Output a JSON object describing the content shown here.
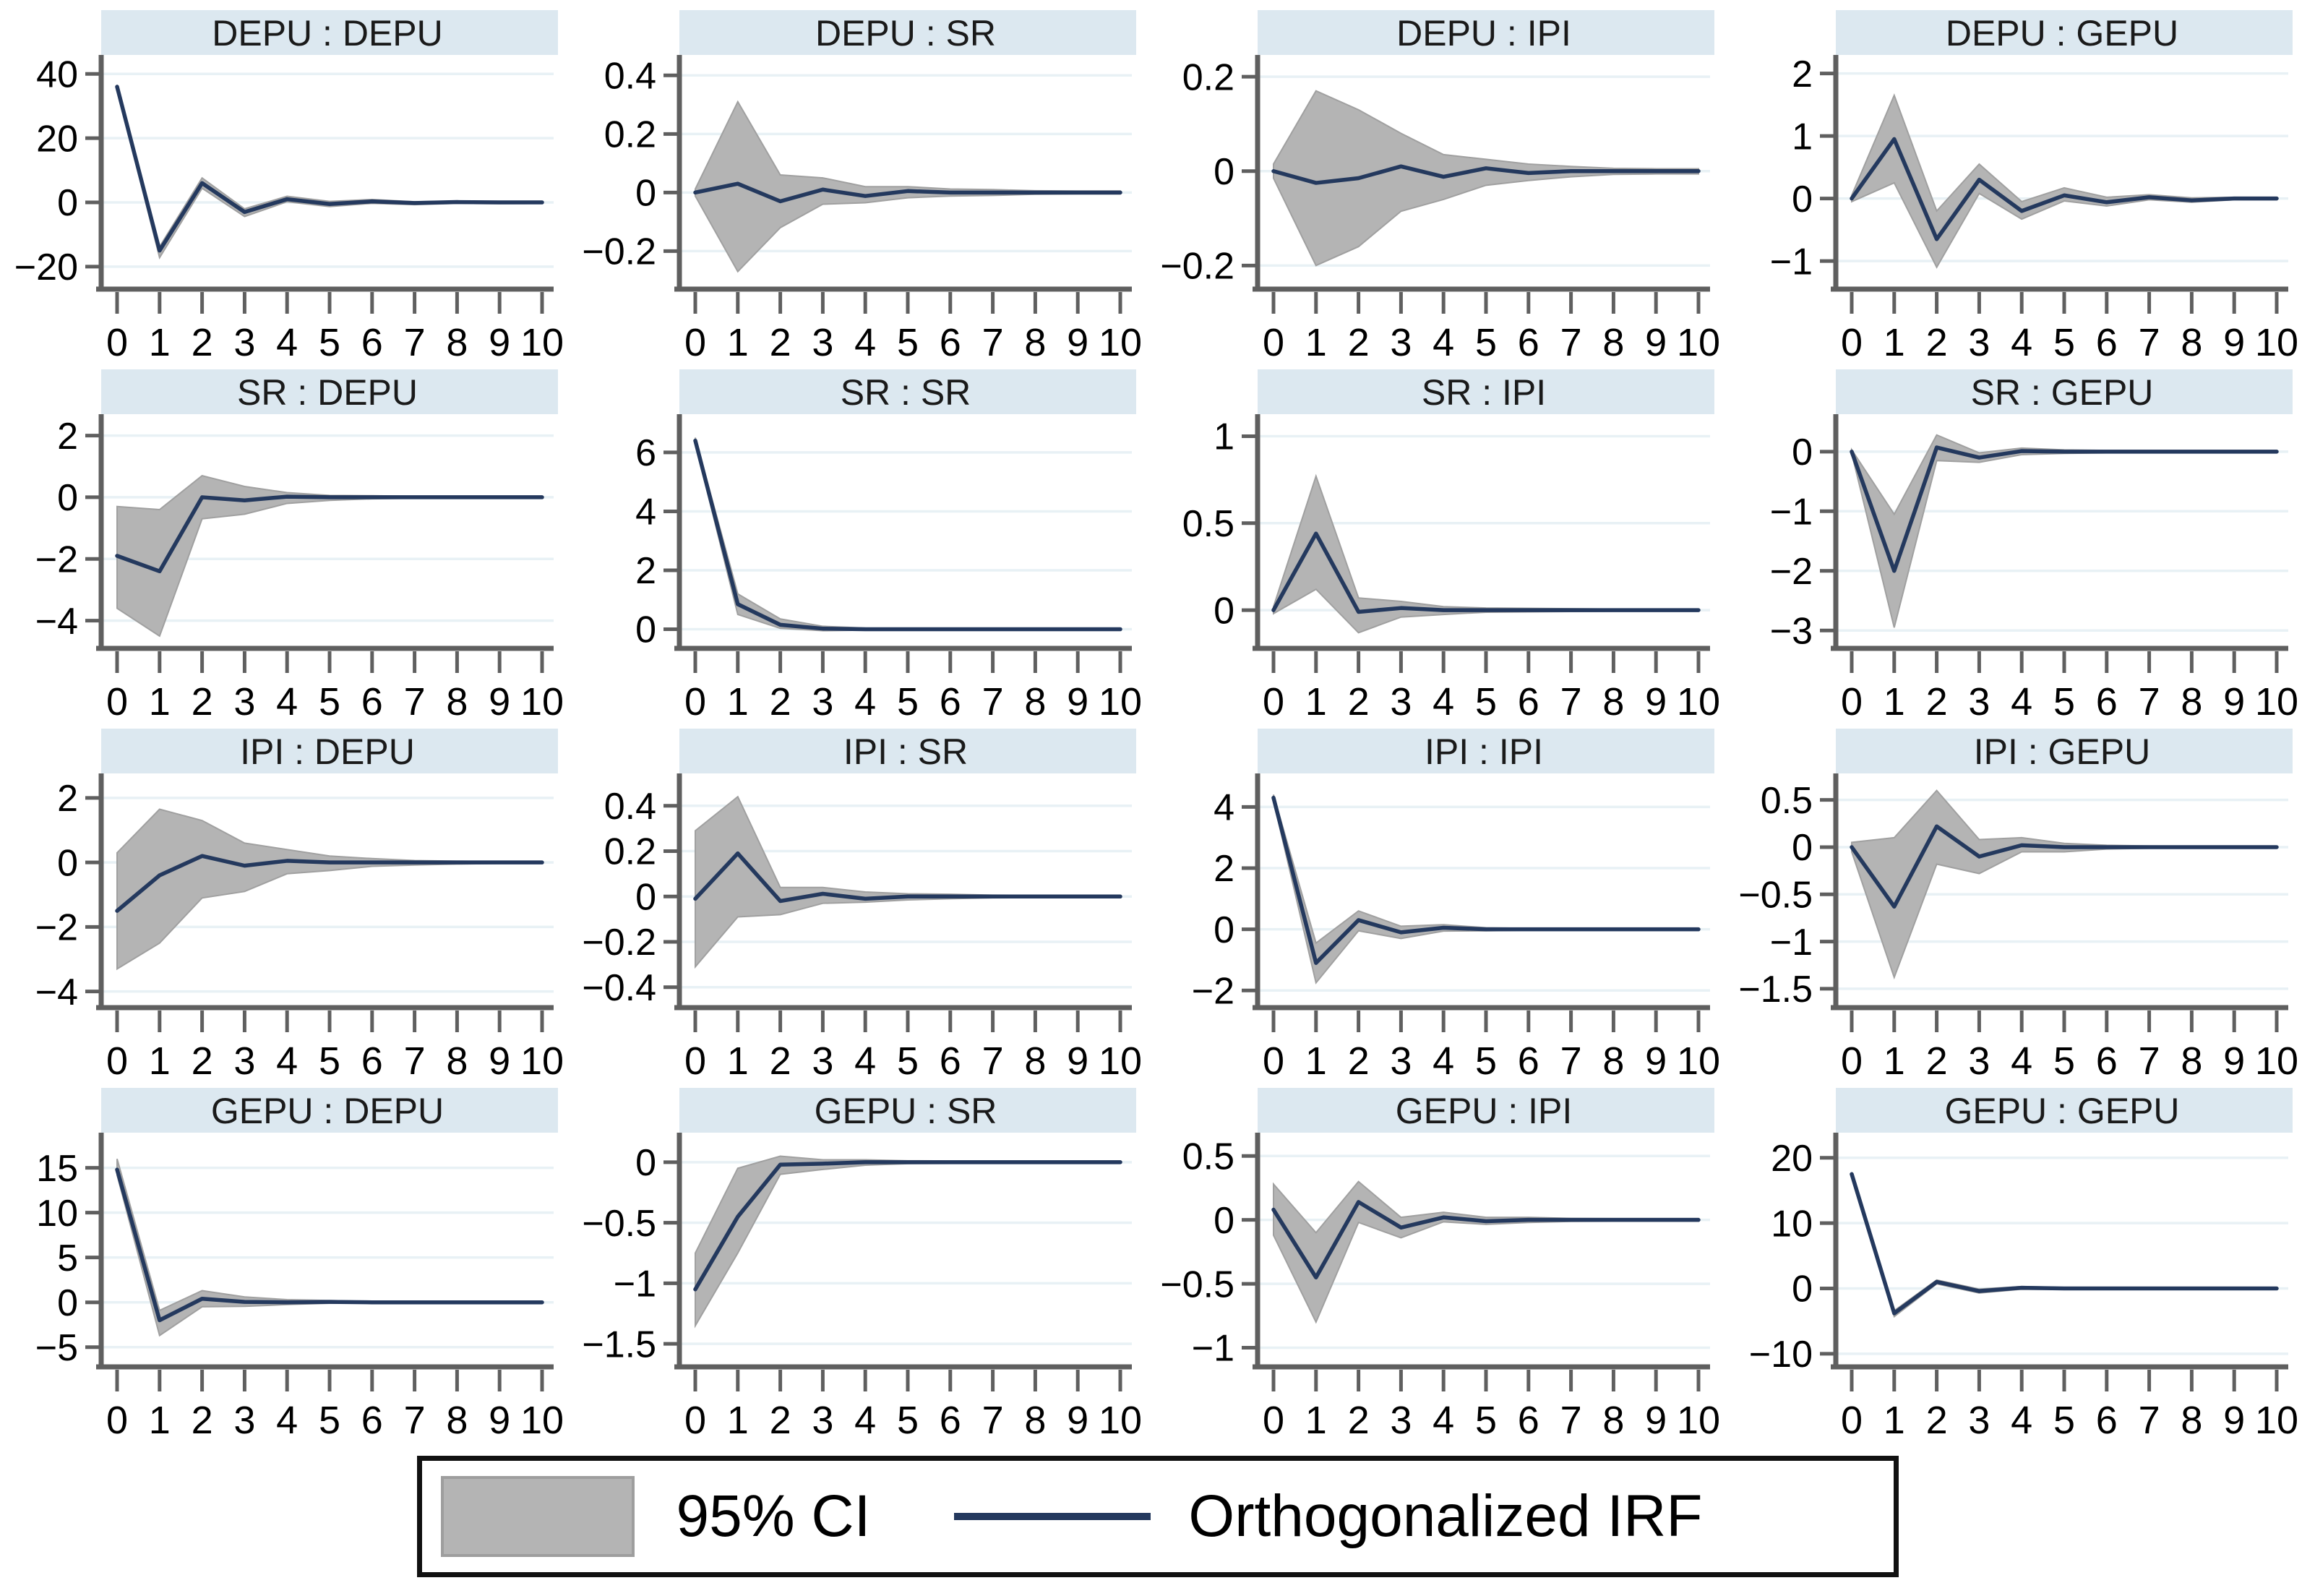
{
  "legend": {
    "ci_label": "95% CI",
    "irf_label": "Orthogonalized IRF"
  },
  "colors": {
    "irf_line": "#24395e",
    "ci_fill": "#b4b4b4",
    "ci_edge": "#a0a0a0",
    "title_band": "#dce8f0",
    "title_text": "#1a1a1a",
    "gridline": "#e8f1f5",
    "axis": "#5f5f5f",
    "tick_label": "#000000"
  },
  "chart_data": {
    "type": "line",
    "x_label": "",
    "x": [
      0,
      1,
      2,
      3,
      4,
      5,
      6,
      7,
      8,
      9,
      10
    ],
    "xticks": [
      0,
      1,
      2,
      3,
      4,
      5,
      6,
      7,
      8,
      9,
      10
    ],
    "legend_entries": [
      "95% CI",
      "Orthogonalized IRF"
    ],
    "legend_position": "bottom",
    "grid": "horizontal",
    "panels": [
      {
        "title": "DEPU : DEPU",
        "impulse": "DEPU",
        "response": "DEPU",
        "ylim": [
          -27,
          45
        ],
        "yticks": [
          -20,
          0,
          20,
          40
        ],
        "irf": [
          36,
          -15,
          6,
          -3,
          1,
          -0.5,
          0.3,
          -0.2,
          0.1,
          0,
          0
        ],
        "ci_upper": [
          36.6,
          -13.8,
          7.6,
          -2.0,
          1.9,
          0.3,
          0.9,
          0.2,
          0.4,
          0.3,
          0.3
        ],
        "ci_lower": [
          35.4,
          -17.2,
          4.4,
          -4.4,
          0.2,
          -1.3,
          -0.3,
          -0.7,
          -0.3,
          -0.4,
          -0.3
        ]
      },
      {
        "title": "DEPU : SR",
        "impulse": "DEPU",
        "response": "SR",
        "ylim": [
          -0.33,
          0.46
        ],
        "yticks": [
          -0.2,
          0,
          0.2,
          0.4
        ],
        "irf": [
          0,
          0.03,
          -0.03,
          0.01,
          -0.012,
          0.005,
          0,
          0,
          0,
          0,
          0
        ],
        "ci_upper": [
          0.012,
          0.31,
          0.06,
          0.05,
          0.02,
          0.02,
          0.012,
          0.01,
          0.006,
          0.005,
          0.005
        ],
        "ci_lower": [
          -0.012,
          -0.27,
          -0.12,
          -0.04,
          -0.035,
          -0.018,
          -0.012,
          -0.01,
          -0.006,
          -0.005,
          -0.005
        ]
      },
      {
        "title": "DEPU : IPI",
        "impulse": "DEPU",
        "response": "IPI",
        "ylim": [
          -0.25,
          0.24
        ],
        "yticks": [
          -0.2,
          0,
          0.2
        ],
        "irf": [
          0,
          -0.025,
          -0.015,
          0.01,
          -0.012,
          0.006,
          -0.004,
          0,
          0,
          0,
          0
        ],
        "ci_upper": [
          0.015,
          0.17,
          0.13,
          0.08,
          0.035,
          0.025,
          0.015,
          0.01,
          0.006,
          0.005,
          0.005
        ],
        "ci_lower": [
          -0.015,
          -0.2,
          -0.16,
          -0.085,
          -0.06,
          -0.03,
          -0.02,
          -0.012,
          -0.007,
          -0.006,
          -0.006
        ]
      },
      {
        "title": "DEPU : GEPU",
        "impulse": "DEPU",
        "response": "GEPU",
        "ylim": [
          -1.45,
          2.25
        ],
        "yticks": [
          -1,
          0,
          1,
          2
        ],
        "irf": [
          0,
          0.95,
          -0.65,
          0.3,
          -0.2,
          0.05,
          -0.06,
          0.02,
          -0.03,
          0,
          0
        ],
        "ci_upper": [
          0.05,
          1.65,
          -0.2,
          0.55,
          -0.05,
          0.17,
          0.02,
          0.06,
          0.01,
          0.02,
          0.02
        ],
        "ci_lower": [
          -0.05,
          0.25,
          -1.1,
          0.08,
          -0.33,
          -0.04,
          -0.12,
          -0.02,
          -0.06,
          -0.02,
          -0.02
        ]
      },
      {
        "title": "SR : DEPU",
        "impulse": "SR",
        "response": "DEPU",
        "ylim": [
          -4.9,
          2.6
        ],
        "yticks": [
          -4,
          -2,
          0,
          2
        ],
        "irf": [
          -1.9,
          -2.4,
          0,
          -0.1,
          0.02,
          0,
          0,
          0,
          0,
          0,
          0
        ],
        "ci_upper": [
          -0.3,
          -0.4,
          0.7,
          0.35,
          0.15,
          0.06,
          0.05,
          0.03,
          0.02,
          0.02,
          0.02
        ],
        "ci_lower": [
          -3.6,
          -4.5,
          -0.7,
          -0.55,
          -0.2,
          -0.1,
          -0.05,
          -0.03,
          -0.02,
          -0.02,
          -0.02
        ]
      },
      {
        "title": "SR : SR",
        "impulse": "SR",
        "response": "SR",
        "ylim": [
          -0.65,
          7.2
        ],
        "yticks": [
          0,
          2,
          4,
          6
        ],
        "irf": [
          6.4,
          0.85,
          0.15,
          0.02,
          0,
          0,
          0,
          0,
          0,
          0,
          0
        ],
        "ci_upper": [
          6.5,
          1.2,
          0.35,
          0.1,
          0.04,
          0.02,
          0.012,
          0.01,
          0.01,
          0.01,
          0.01
        ],
        "ci_lower": [
          6.3,
          0.5,
          0.03,
          -0.05,
          -0.03,
          -0.02,
          -0.012,
          -0.01,
          -0.01,
          -0.01,
          -0.01
        ]
      },
      {
        "title": "SR : IPI",
        "impulse": "SR",
        "response": "IPI",
        "ylim": [
          -0.22,
          1.11
        ],
        "yticks": [
          0,
          0.5,
          1
        ],
        "irf": [
          0,
          0.44,
          -0.01,
          0.012,
          0,
          0,
          0,
          0,
          0,
          0,
          0
        ],
        "ci_upper": [
          0.02,
          0.77,
          0.07,
          0.05,
          0.02,
          0.012,
          0.01,
          0.008,
          0.006,
          0.005,
          0.005
        ],
        "ci_lower": [
          -0.02,
          0.12,
          -0.13,
          -0.04,
          -0.025,
          -0.012,
          -0.01,
          -0.008,
          -0.006,
          -0.005,
          -0.005
        ]
      },
      {
        "title": "SR : GEPU",
        "impulse": "SR",
        "response": "GEPU",
        "ylim": [
          -3.3,
          0.58
        ],
        "yticks": [
          -3,
          -2,
          -1,
          0
        ],
        "irf": [
          0,
          -2.0,
          0.07,
          -0.1,
          0.01,
          0,
          0,
          0,
          0,
          0,
          0
        ],
        "ci_upper": [
          0.03,
          -1.05,
          0.28,
          -0.02,
          0.06,
          0.03,
          0.02,
          0.02,
          0.02,
          0.02,
          0.02
        ],
        "ci_lower": [
          -0.03,
          -2.95,
          -0.15,
          -0.18,
          -0.05,
          -0.03,
          -0.02,
          -0.02,
          -0.02,
          -0.02,
          -0.02
        ]
      },
      {
        "title": "IPI : DEPU",
        "impulse": "IPI",
        "response": "DEPU",
        "ylim": [
          -4.5,
          2.67
        ],
        "yticks": [
          -4,
          -2,
          0,
          2
        ],
        "irf": [
          -1.5,
          -0.4,
          0.2,
          -0.1,
          0.05,
          0,
          0,
          0,
          0,
          0,
          0
        ],
        "ci_upper": [
          0.3,
          1.65,
          1.3,
          0.6,
          0.4,
          0.2,
          0.12,
          0.06,
          0.04,
          0.03,
          0.03
        ],
        "ci_lower": [
          -3.3,
          -2.5,
          -1.1,
          -0.9,
          -0.35,
          -0.25,
          -0.12,
          -0.08,
          -0.05,
          -0.03,
          -0.03
        ]
      },
      {
        "title": "IPI : SR",
        "impulse": "IPI",
        "response": "SR",
        "ylim": [
          -0.49,
          0.53
        ],
        "yticks": [
          -0.4,
          -0.2,
          0,
          0.2,
          0.4
        ],
        "irf": [
          -0.01,
          0.19,
          -0.02,
          0.012,
          -0.01,
          0,
          0,
          0,
          0,
          0,
          0
        ],
        "ci_upper": [
          0.29,
          0.44,
          0.04,
          0.04,
          0.02,
          0.012,
          0.01,
          0.006,
          0.005,
          0.005,
          0.005
        ],
        "ci_lower": [
          -0.31,
          -0.09,
          -0.08,
          -0.03,
          -0.025,
          -0.015,
          -0.01,
          -0.006,
          -0.005,
          -0.005,
          -0.005
        ]
      },
      {
        "title": "IPI : IPI",
        "impulse": "IPI",
        "response": "IPI",
        "ylim": [
          -2.56,
          5.0
        ],
        "yticks": [
          -2,
          0,
          2,
          4
        ],
        "irf": [
          4.3,
          -1.1,
          0.3,
          -0.1,
          0.05,
          0,
          0,
          0,
          0,
          0,
          0
        ],
        "ci_upper": [
          4.4,
          -0.45,
          0.6,
          0.1,
          0.15,
          0.05,
          0.03,
          0.02,
          0.02,
          0.01,
          0.01
        ],
        "ci_lower": [
          4.2,
          -1.75,
          -0.05,
          -0.3,
          -0.06,
          -0.05,
          -0.03,
          -0.02,
          -0.02,
          -0.01,
          -0.01
        ]
      },
      {
        "title": "IPI : GEPU",
        "impulse": "IPI",
        "response": "GEPU",
        "ylim": [
          -1.7,
          0.75
        ],
        "yticks": [
          -1.5,
          -1,
          -0.5,
          0,
          0.5
        ],
        "irf": [
          0,
          -0.63,
          0.22,
          -0.1,
          0.02,
          0,
          0,
          0,
          0,
          0,
          0
        ],
        "ci_upper": [
          0.05,
          0.1,
          0.6,
          0.08,
          0.1,
          0.04,
          0.02,
          0.012,
          0.01,
          0.01,
          0.01
        ],
        "ci_lower": [
          -0.05,
          -1.38,
          -0.18,
          -0.28,
          -0.05,
          -0.05,
          -0.02,
          -0.012,
          -0.01,
          -0.01,
          -0.01
        ]
      },
      {
        "title": "GEPU : DEPU",
        "impulse": "GEPU",
        "response": "DEPU",
        "ylim": [
          -7.2,
          18.6
        ],
        "yticks": [
          -5,
          0,
          5,
          10,
          15
        ],
        "irf": [
          14.8,
          -2.0,
          0.4,
          0.05,
          0,
          0.05,
          0,
          0,
          0,
          0,
          0
        ],
        "ci_upper": [
          16.0,
          -0.9,
          1.3,
          0.6,
          0.3,
          0.2,
          0.1,
          0.08,
          0.06,
          0.05,
          0.05
        ],
        "ci_lower": [
          14.2,
          -3.7,
          -0.5,
          -0.45,
          -0.25,
          -0.1,
          -0.08,
          -0.06,
          -0.05,
          -0.04,
          -0.04
        ]
      },
      {
        "title": "GEPU : SR",
        "impulse": "GEPU",
        "response": "SR",
        "ylim": [
          -1.69,
          0.22
        ],
        "yticks": [
          -1.5,
          -1,
          -0.5,
          0
        ],
        "irf": [
          -1.05,
          -0.45,
          -0.02,
          -0.012,
          0,
          0,
          0,
          0,
          0,
          0,
          0
        ],
        "ci_upper": [
          -0.75,
          -0.05,
          0.05,
          0.02,
          0.02,
          0.012,
          0.01,
          0.01,
          0.01,
          0.01,
          0.01
        ],
        "ci_lower": [
          -1.35,
          -0.75,
          -0.1,
          -0.06,
          -0.025,
          -0.012,
          -0.01,
          -0.01,
          -0.01,
          -0.01,
          -0.01
        ]
      },
      {
        "title": "GEPU : IPI",
        "impulse": "GEPU",
        "response": "IPI",
        "ylim": [
          -1.15,
          0.66
        ],
        "yticks": [
          -1,
          -0.5,
          0,
          0.5
        ],
        "irf": [
          0.08,
          -0.45,
          0.14,
          -0.06,
          0.02,
          -0.01,
          0,
          0,
          0,
          0,
          0
        ],
        "ci_upper": [
          0.28,
          -0.1,
          0.3,
          0.02,
          0.06,
          0.02,
          0.02,
          0.012,
          0.01,
          0.01,
          0.01
        ],
        "ci_lower": [
          -0.12,
          -0.8,
          -0.02,
          -0.14,
          -0.015,
          -0.035,
          -0.02,
          -0.012,
          -0.01,
          -0.01,
          -0.01
        ]
      },
      {
        "title": "GEPU : GEPU",
        "impulse": "GEPU",
        "response": "GEPU",
        "ylim": [
          -12,
          23.4
        ],
        "yticks": [
          -10,
          0,
          10,
          20
        ],
        "irf": [
          17.5,
          -3.8,
          1.0,
          -0.4,
          0.1,
          0,
          0,
          0,
          0,
          0,
          0
        ],
        "ci_upper": [
          17.8,
          -3.4,
          1.3,
          -0.1,
          0.3,
          0.15,
          0.1,
          0.08,
          0.06,
          0.05,
          0.05
        ],
        "ci_lower": [
          17.2,
          -4.3,
          0.7,
          -0.7,
          -0.12,
          -0.15,
          -0.1,
          -0.08,
          -0.06,
          -0.05,
          -0.05
        ]
      }
    ]
  }
}
